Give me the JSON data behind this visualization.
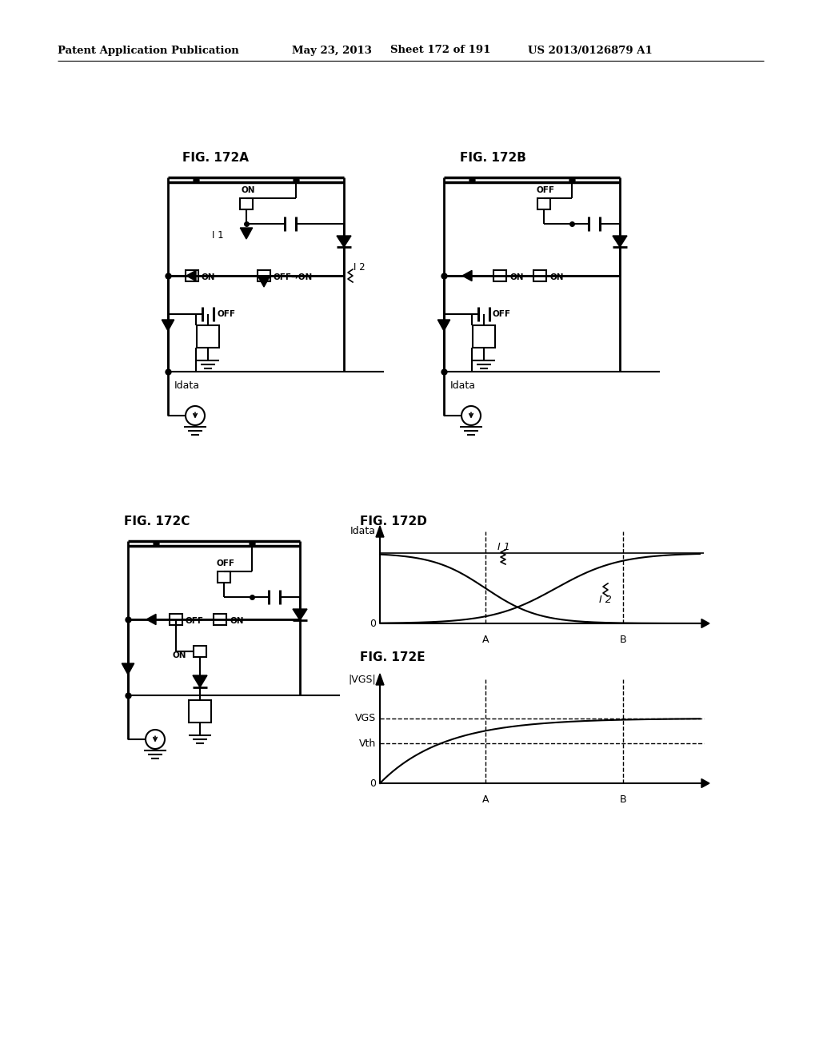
{
  "bg_color": "#ffffff",
  "header_text": "Patent Application Publication",
  "header_date": "May 23, 2013",
  "header_sheet": "Sheet 172 of 191",
  "header_patent": "US 2013/0126879 A1"
}
